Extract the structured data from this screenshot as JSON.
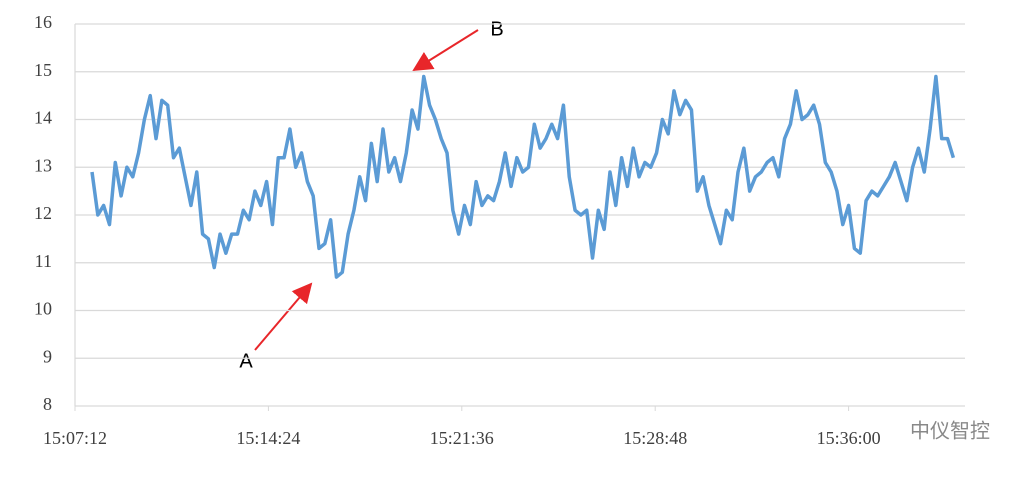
{
  "chart_data": {
    "type": "line",
    "x": [
      54470,
      54483,
      54496,
      54509,
      54522,
      54535,
      54548,
      54561,
      54574,
      54587,
      54600,
      54613,
      54626,
      54639,
      54652,
      54665,
      54678,
      54691,
      54704,
      54717,
      54730,
      54743,
      54756,
      54769,
      54782,
      54795,
      54808,
      54821,
      54834,
      54847,
      54860,
      54873,
      54886,
      54899,
      54912,
      54925,
      54938,
      54951,
      54964,
      54977,
      54990,
      55003,
      55016,
      55029,
      55042,
      55055,
      55068,
      55081,
      55094,
      55107,
      55120,
      55133,
      55146,
      55159,
      55172,
      55185,
      55198,
      55211,
      55224,
      55237,
      55250,
      55263,
      55276,
      55289,
      55302,
      55315,
      55328,
      55341,
      55354,
      55367,
      55380,
      55393,
      55406,
      55419,
      55432,
      55445,
      55458,
      55471,
      55484,
      55497,
      55510,
      55523,
      55536,
      55549,
      55562,
      55575,
      55588,
      55601,
      55614,
      55627,
      55640,
      55653,
      55666,
      55679,
      55692,
      55705,
      55718,
      55731,
      55744,
      55757,
      55770,
      55783,
      55796,
      55809,
      55822,
      55835,
      55848,
      55861,
      55874,
      55887,
      55900,
      55913,
      55926,
      55939,
      55952,
      55965,
      55978,
      55991,
      56004,
      56017,
      56030,
      56043,
      56056,
      56069,
      56082,
      56095,
      56108,
      56121,
      56134,
      56147,
      56160,
      56173,
      56186,
      56199,
      56212,
      56225,
      56238,
      56251,
      56264,
      56277,
      56290,
      56303,
      56316,
      56329,
      56342,
      56355,
      56368,
      56381,
      56394
    ],
    "series": [
      {
        "color": "#5b9bd5",
        "values": [
          12.9,
          12.0,
          12.2,
          11.8,
          13.1,
          12.4,
          13.0,
          12.8,
          13.3,
          14.0,
          14.5,
          13.6,
          14.4,
          14.3,
          13.2,
          13.4,
          12.8,
          12.2,
          12.9,
          11.6,
          11.5,
          10.9,
          11.6,
          11.2,
          11.6,
          11.6,
          12.1,
          11.9,
          12.5,
          12.2,
          12.7,
          11.8,
          13.2,
          13.2,
          13.8,
          13.0,
          13.3,
          12.7,
          12.4,
          11.3,
          11.4,
          11.9,
          10.7,
          10.8,
          11.6,
          12.1,
          12.8,
          12.3,
          13.5,
          12.7,
          13.8,
          12.9,
          13.2,
          12.7,
          13.3,
          14.2,
          13.8,
          14.9,
          14.3,
          14.0,
          13.6,
          13.3,
          12.1,
          11.6,
          12.2,
          11.8,
          12.7,
          12.2,
          12.4,
          12.3,
          12.7,
          13.3,
          12.6,
          13.2,
          12.9,
          13.0,
          13.9,
          13.4,
          13.6,
          13.9,
          13.6,
          14.3,
          12.8,
          12.1,
          12.0,
          12.1,
          11.1,
          12.1,
          11.7,
          12.9,
          12.2,
          13.2,
          12.6,
          13.4,
          12.8,
          13.1,
          13.0,
          13.3,
          14.0,
          13.7,
          14.6,
          14.1,
          14.4,
          14.2,
          12.5,
          12.8,
          12.2,
          11.8,
          11.4,
          12.1,
          11.9,
          12.9,
          13.4,
          12.5,
          12.8,
          12.9,
          13.1,
          13.2,
          12.8,
          13.6,
          13.9,
          14.6,
          14.0,
          14.1,
          14.3,
          13.9,
          13.1,
          12.9,
          12.5,
          11.8,
          12.2,
          11.3,
          11.2,
          12.3,
          12.5,
          12.4,
          12.6,
          12.8,
          13.1,
          12.7,
          12.3,
          13.0,
          13.4,
          12.9,
          13.8,
          14.9,
          13.6,
          13.6,
          13.2
        ]
      }
    ],
    "xlim": [
      54432,
      56420
    ],
    "xticks": [
      {
        "value": 54432,
        "label": "15:07:12"
      },
      {
        "value": 54864,
        "label": "15:14:24"
      },
      {
        "value": 55296,
        "label": "15:21:36"
      },
      {
        "value": 55728,
        "label": "15:28:48"
      },
      {
        "value": 56160,
        "label": "15:36:00"
      }
    ],
    "ylim": [
      8,
      16
    ],
    "yticks": [
      8,
      9,
      10,
      11,
      12,
      13,
      14,
      15,
      16
    ],
    "grid": true,
    "annotations": [
      "A",
      "B"
    ],
    "watermark": "中仪智控"
  }
}
